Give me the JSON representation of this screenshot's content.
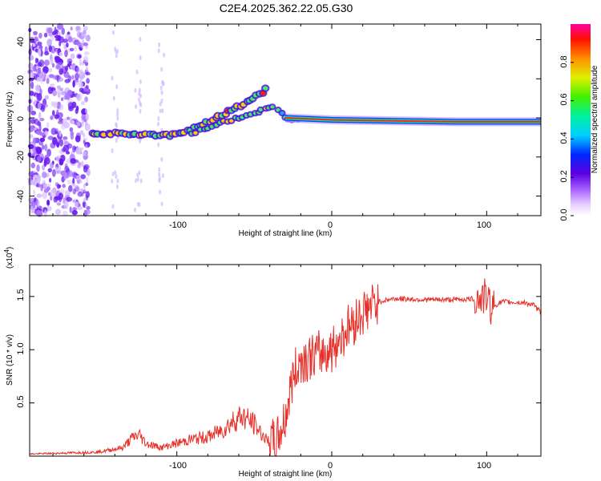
{
  "title": "C2E4.2025.362.22.05.G30",
  "colors": {
    "snr_line": "#e8302a",
    "axis": "#000000",
    "scatter_purple": "#7a3cff"
  },
  "chart_data": [
    {
      "type": "heatmap",
      "name": "spectrogram",
      "xlabel": "Height of straight line (km)",
      "ylabel": "Frequency (Hz)",
      "xlim": [
        -195,
        135
      ],
      "ylim": [
        -50,
        48
      ],
      "xticks": [
        "-100",
        "0",
        "100"
      ],
      "yticks": [
        "40",
        "20",
        "0",
        "-20",
        "-40"
      ],
      "colorbar": {
        "label": "Normalized spectral amplitude",
        "range": [
          0.0,
          1.0
        ],
        "ticks": [
          "0.0",
          "0.2",
          "0.4",
          "0.6",
          "0.8"
        ]
      },
      "signal_track": [
        {
          "x": -155,
          "y": -8
        },
        {
          "x": -140,
          "y": -8
        },
        {
          "x": -120,
          "y": -8.5
        },
        {
          "x": -105,
          "y": -9
        },
        {
          "x": -95,
          "y": -7
        },
        {
          "x": -85,
          "y": -4
        },
        {
          "x": -75,
          "y": 0
        },
        {
          "x": -65,
          "y": 4
        },
        {
          "x": -55,
          "y": 8
        },
        {
          "x": -45,
          "y": 13
        },
        {
          "x": -40,
          "y": 17
        }
      ],
      "lower_branch": [
        {
          "x": -90,
          "y": -8
        },
        {
          "x": -80,
          "y": -5
        },
        {
          "x": -70,
          "y": -2
        },
        {
          "x": -60,
          "y": 0
        },
        {
          "x": -50,
          "y": 2
        },
        {
          "x": -38,
          "y": 6
        },
        {
          "x": -30,
          "y": 0
        },
        {
          "x": -20,
          "y": -1
        }
      ],
      "flat_track": [
        {
          "x": -30,
          "y": 0
        },
        {
          "x": 0,
          "y": -1
        },
        {
          "x": 40,
          "y": -1.5
        },
        {
          "x": 80,
          "y": -2
        },
        {
          "x": 100,
          "y": -2
        },
        {
          "x": 135,
          "y": -2
        }
      ]
    },
    {
      "type": "line",
      "name": "snr",
      "xlabel": "Height of straight line (km)",
      "ylabel": "SNR (10 * v/v)",
      "scale_label": "(x10",
      "scale_exp": "4",
      "scale_close": ")",
      "xlim": [
        -195,
        135
      ],
      "ylim": [
        0,
        1.8
      ],
      "xticks": [
        "-100",
        "0",
        "100"
      ],
      "yticks": [
        "0.5",
        "1.0",
        "1.5"
      ],
      "series": [
        {
          "name": "SNR",
          "x": [
            -195,
            -170,
            -150,
            -135,
            -128,
            -124,
            -120,
            -110,
            -100,
            -90,
            -80,
            -70,
            -62,
            -58,
            -50,
            -42,
            -36,
            -30,
            -25,
            -20,
            -10,
            0,
            10,
            20,
            30,
            40,
            60,
            80,
            95,
            100,
            103,
            110,
            125,
            130,
            135
          ],
          "values": [
            0.02,
            0.03,
            0.04,
            0.08,
            0.18,
            0.2,
            0.12,
            0.08,
            0.12,
            0.16,
            0.18,
            0.25,
            0.35,
            0.38,
            0.3,
            0.15,
            0.12,
            0.35,
            0.75,
            0.9,
            0.95,
            1.0,
            1.2,
            1.35,
            1.45,
            1.48,
            1.47,
            1.47,
            1.48,
            1.5,
            1.4,
            1.45,
            1.44,
            1.42,
            1.35
          ]
        }
      ]
    }
  ]
}
